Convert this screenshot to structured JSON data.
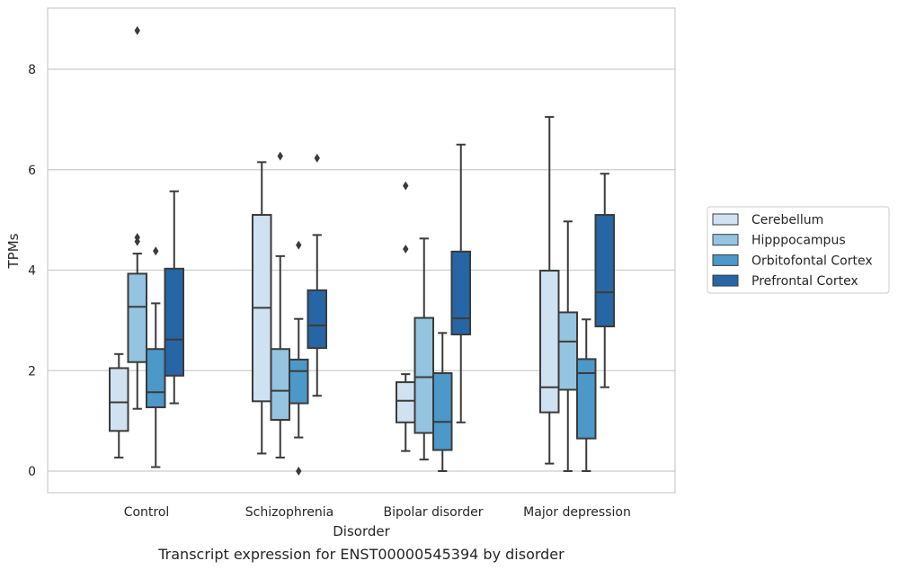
{
  "caption": "Transcript expression for ENST00000545394 by disorder",
  "chart_data": {
    "type": "box",
    "title": "",
    "xlabel": "Disorder",
    "ylabel": "TPMs",
    "ylim": [
      -0.4,
      9.2
    ],
    "yticks": [
      0,
      2,
      4,
      6,
      8
    ],
    "grid": "horizontal",
    "legend_position": "right",
    "categories": [
      "Control",
      "Schizophrenia",
      "Bipolar disorder",
      "Major depression"
    ],
    "series": [
      {
        "name": "Cerebellum",
        "color": "#d0e1f2",
        "boxes": [
          {
            "whislo": 0.27,
            "q1": 0.8,
            "median": 1.37,
            "q3": 2.05,
            "whishi": 2.33,
            "fliers": []
          },
          {
            "whislo": 0.35,
            "q1": 1.39,
            "median": 3.25,
            "q3": 5.1,
            "whishi": 6.15,
            "fliers": []
          },
          {
            "whislo": 0.4,
            "q1": 0.97,
            "median": 1.4,
            "q3": 1.77,
            "whishi": 1.93,
            "fliers": [
              4.42,
              5.68
            ]
          },
          {
            "whislo": 0.15,
            "q1": 1.17,
            "median": 1.67,
            "q3": 3.99,
            "whishi": 7.05,
            "fliers": []
          }
        ]
      },
      {
        "name": "Hipppocampus",
        "color": "#94c4df",
        "boxes": [
          {
            "whislo": 1.24,
            "q1": 2.17,
            "median": 3.27,
            "q3": 3.93,
            "whishi": 4.33,
            "fliers": [
              4.57,
              4.65,
              8.77
            ]
          },
          {
            "whislo": 0.27,
            "q1": 1.02,
            "median": 1.6,
            "q3": 2.43,
            "whishi": 4.28,
            "fliers": [
              6.27
            ]
          },
          {
            "whislo": 0.23,
            "q1": 0.76,
            "median": 1.87,
            "q3": 3.05,
            "whishi": 4.63,
            "fliers": []
          },
          {
            "whislo": 0.0,
            "q1": 1.62,
            "median": 2.58,
            "q3": 3.16,
            "whishi": 4.97,
            "fliers": []
          }
        ]
      },
      {
        "name": "Orbitofontal Cortex",
        "color": "#4b98c9",
        "boxes": [
          {
            "whislo": 0.08,
            "q1": 1.27,
            "median": 1.57,
            "q3": 2.43,
            "whishi": 3.34,
            "fliers": [
              4.38
            ]
          },
          {
            "whislo": 0.67,
            "q1": 1.35,
            "median": 1.99,
            "q3": 2.22,
            "whishi": 3.03,
            "fliers": [
              0.0,
              4.5
            ]
          },
          {
            "whislo": 0.0,
            "q1": 0.42,
            "median": 0.98,
            "q3": 1.95,
            "whishi": 2.75,
            "fliers": []
          },
          {
            "whislo": 0.0,
            "q1": 0.65,
            "median": 1.95,
            "q3": 2.23,
            "whishi": 3.02,
            "fliers": []
          }
        ]
      },
      {
        "name": "Prefrontal Cortex",
        "color": "#2666a6",
        "boxes": [
          {
            "whislo": 1.35,
            "q1": 1.9,
            "median": 2.62,
            "q3": 4.03,
            "whishi": 5.57,
            "fliers": []
          },
          {
            "whislo": 1.5,
            "q1": 2.45,
            "median": 2.9,
            "q3": 3.6,
            "whishi": 4.7,
            "fliers": [
              6.23
            ]
          },
          {
            "whislo": 0.97,
            "q1": 2.72,
            "median": 3.04,
            "q3": 4.37,
            "whishi": 6.5,
            "fliers": []
          },
          {
            "whislo": 1.67,
            "q1": 2.88,
            "median": 3.56,
            "q3": 5.1,
            "whishi": 5.92,
            "fliers": []
          }
        ]
      }
    ]
  }
}
